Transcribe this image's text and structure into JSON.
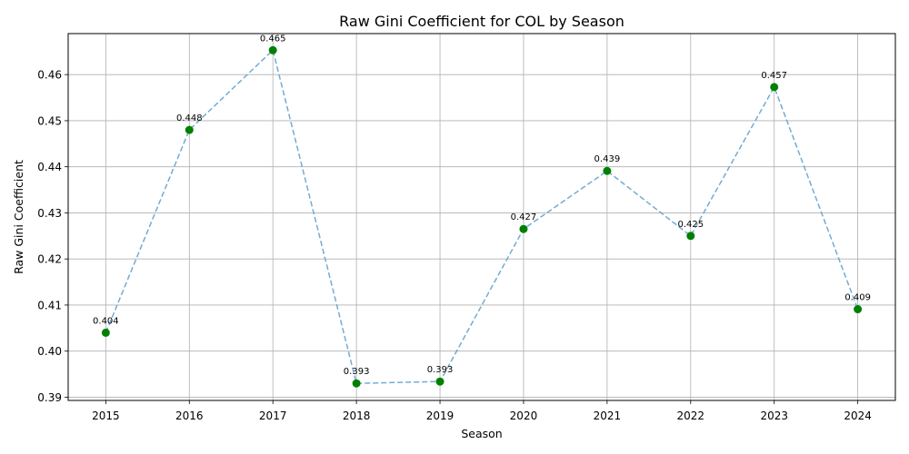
{
  "chart_data": {
    "type": "line",
    "title": "Raw Gini Coefficient for COL by Season",
    "xlabel": "Season",
    "ylabel": "Raw Gini Coefficient",
    "x": [
      2015,
      2016,
      2017,
      2018,
      2019,
      2020,
      2021,
      2022,
      2023,
      2024
    ],
    "y": [
      0.404,
      0.448,
      0.4653,
      0.393,
      0.3934,
      0.4265,
      0.4391,
      0.425,
      0.4573,
      0.4091
    ],
    "point_labels": [
      "0.404",
      "0.448",
      "0.465",
      "0.393",
      "0.393",
      "0.427",
      "0.439",
      "0.425",
      "0.457",
      "0.409"
    ],
    "x_ticks": [
      "2015",
      "2016",
      "2017",
      "2018",
      "2019",
      "2020",
      "2021",
      "2022",
      "2023",
      "2024"
    ],
    "y_ticks": [
      0.39,
      0.4,
      0.41,
      0.42,
      0.43,
      0.44,
      0.45,
      0.46
    ],
    "y_tick_labels": [
      "0.39",
      "0.40",
      "0.41",
      "0.42",
      "0.43",
      "0.44",
      "0.45",
      "0.46"
    ],
    "xlim": [
      2014.55,
      2024.45
    ],
    "ylim": [
      0.3893,
      0.4689
    ],
    "grid": true,
    "line_style": "dashed",
    "line_color": "#6aa8d0",
    "marker_color": "#008000"
  }
}
